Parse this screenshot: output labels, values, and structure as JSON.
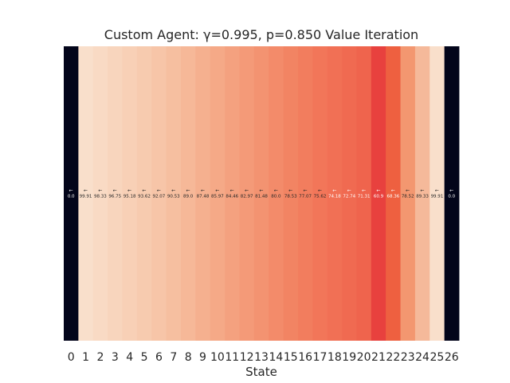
{
  "chart_data": {
    "type": "heatmap",
    "title": "Custom Agent: γ=0.995, p=0.850 Value Iteration",
    "xlabel": "State",
    "ylabel": "",
    "categories": [
      "0",
      "1",
      "2",
      "3",
      "4",
      "5",
      "6",
      "7",
      "8",
      "9",
      "10",
      "11",
      "12",
      "13",
      "14",
      "15",
      "16",
      "17",
      "18",
      "19",
      "20",
      "21",
      "22",
      "23",
      "24",
      "25",
      "26"
    ],
    "labels": [
      "0.0",
      "99.91",
      "98.33",
      "96.75",
      "95.18",
      "93.62",
      "92.07",
      "90.53",
      "89.0",
      "87.48",
      "85.97",
      "84.46",
      "82.97",
      "81.48",
      "80.0",
      "78.53",
      "77.07",
      "75.62",
      "74.18",
      "72.74",
      "71.31",
      "60.9",
      "68.36",
      "78.52",
      "89.33",
      "99.91",
      "0.0"
    ],
    "values": [
      0.0,
      99.91,
      98.33,
      96.75,
      95.18,
      93.62,
      92.07,
      90.53,
      89.0,
      87.48,
      85.97,
      84.46,
      82.97,
      81.48,
      80.0,
      78.53,
      77.07,
      75.62,
      74.18,
      72.74,
      71.31,
      60.9,
      68.36,
      78.52,
      89.33,
      99.91,
      0.0
    ],
    "arrows": [
      "←",
      "←",
      "←",
      "←",
      "←",
      "←",
      "←",
      "←",
      "←",
      "←",
      "←",
      "←",
      "←",
      "←",
      "←",
      "←",
      "←",
      "←",
      "←",
      "←",
      "←",
      "←",
      "←",
      "←",
      "←",
      "←",
      "←"
    ],
    "colormap": "rocket",
    "colors": [
      "#03051a",
      "#f9dfcb",
      "#f9dac4",
      "#f8d5bd",
      "#f8d0b6",
      "#f7cbaf",
      "#f7c5a8",
      "#f6bfa0",
      "#f6b898",
      "#f5b08f",
      "#f5a987",
      "#f4a17f",
      "#f49a78",
      "#f39371",
      "#f38b6a",
      "#f28463",
      "#f27d5e",
      "#f27659",
      "#f17055",
      "#f06a51",
      "#ef644d",
      "#e8413e",
      "#ee6040",
      "#f39770",
      "#f5b99a",
      "#f9dfcb",
      "#03051a"
    ],
    "grid": false,
    "legend": "none"
  }
}
